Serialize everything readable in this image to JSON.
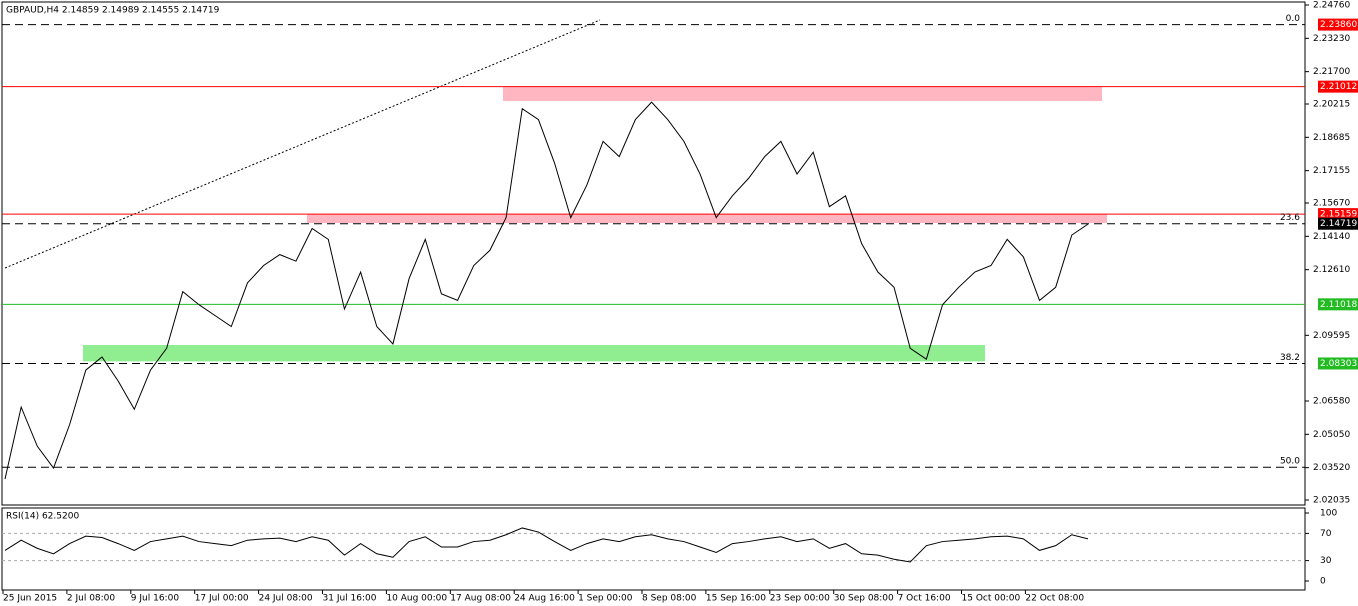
{
  "chart_data": {
    "type": "line",
    "title": "GBPAUD,H4  2.14859 2.14989 2.14555 2.14719",
    "x_labels": [
      "25 Jun 2015",
      "2 Jul 08:00",
      "9 Jul 16:00",
      "17 Jul 00:00",
      "24 Jul 08:00",
      "31 Jul 16:00",
      "10 Aug 00:00",
      "17 Aug 08:00",
      "24 Aug 16:00",
      "1 Sep 00:00",
      "8 Sep 08:00",
      "15 Sep 16:00",
      "23 Sep 00:00",
      "30 Sep 08:00",
      "7 Oct 16:00",
      "15 Oct 00:00",
      "22 Oct 08:00"
    ],
    "series": [
      {
        "name": "GBPAUD",
        "color": "#000000",
        "values": [
          2.03,
          2.063,
          2.045,
          2.035,
          2.055,
          2.08,
          2.086,
          2.075,
          2.062,
          2.08,
          2.09,
          2.116,
          2.11,
          2.105,
          2.1,
          2.12,
          2.128,
          2.133,
          2.13,
          2.145,
          2.14,
          2.108,
          2.125,
          2.1,
          2.092,
          2.122,
          2.14,
          2.115,
          2.112,
          2.128,
          2.135,
          2.15,
          2.2,
          2.195,
          2.175,
          2.15,
          2.165,
          2.185,
          2.178,
          2.195,
          2.203,
          2.195,
          2.185,
          2.17,
          2.15,
          2.16,
          2.168,
          2.178,
          2.185,
          2.17,
          2.18,
          2.155,
          2.16,
          2.138,
          2.125,
          2.118,
          2.09,
          2.085,
          2.11,
          2.118,
          2.125,
          2.128,
          2.14,
          2.132,
          2.112,
          2.118,
          2.142,
          2.147
        ]
      }
    ],
    "ylim": [
      2.02035,
      2.2476
    ],
    "yticks": [
      {
        "value": 2.2476,
        "label": "2.24760"
      },
      {
        "value": 2.2323,
        "label": "2.23230"
      },
      {
        "value": 2.217,
        "label": "2.21700"
      },
      2.20215,
      2.18685,
      2.17155,
      {
        "value": 2.1567,
        "label": "2.15670"
      },
      {
        "value": 2.1414,
        "label": "2.14140"
      },
      {
        "value": 2.1261,
        "label": "2.12610"
      },
      2.09595,
      {
        "value": 2.0658,
        "label": "2.06580"
      },
      {
        "value": 2.0505,
        "label": "2.05050"
      },
      {
        "value": 2.0352,
        "label": "2.03520"
      },
      2.02035
    ],
    "levels": [
      {
        "value": 2.2386,
        "label": "2.23860",
        "color": "#ff0000",
        "dashed": true,
        "fib": "0.0"
      },
      {
        "value": 2.21012,
        "label": "2.21012",
        "color": "#ff0000",
        "dashed": false
      },
      {
        "value": 2.15159,
        "label": "2.15159",
        "color": "#ff0000",
        "dashed": false
      },
      {
        "value": 2.14719,
        "label": "2.14719",
        "color": "#000000",
        "dashed": true,
        "fib": "23.6"
      },
      {
        "value": 2.11018,
        "label": "2.11018",
        "color": "#22bb22",
        "dashed": false
      },
      {
        "value": 2.08303,
        "label": "2.08303",
        "color": "#22bb22",
        "dashed": true,
        "fib": "38.2"
      },
      {
        "value": 2.0354,
        "color": "#000000",
        "dashed": true,
        "fib": "50.0"
      }
    ],
    "zones": [
      {
        "low": 2.2035,
        "high": 2.2101,
        "color": "#ffb6c1"
      },
      {
        "low": 2.1475,
        "high": 2.1516,
        "color": "#ffb6c1"
      },
      {
        "low": 2.084,
        "high": 2.0915,
        "color": "#90ee90"
      }
    ],
    "rsi": {
      "title": "RSI(14) 62.5200",
      "values": [
        45,
        60,
        48,
        40,
        55,
        66,
        64,
        55,
        45,
        58,
        62,
        66,
        58,
        55,
        52,
        60,
        62,
        63,
        58,
        65,
        60,
        38,
        55,
        40,
        35,
        58,
        65,
        50,
        50,
        58,
        60,
        68,
        78,
        72,
        58,
        45,
        55,
        62,
        58,
        65,
        68,
        62,
        58,
        50,
        42,
        55,
        58,
        62,
        65,
        58,
        62,
        48,
        55,
        40,
        38,
        32,
        28,
        52,
        58,
        60,
        62,
        65,
        66,
        62,
        45,
        52,
        68,
        62
      ],
      "ylim": [
        0,
        100
      ],
      "yticks": [
        100,
        70,
        30,
        0
      ]
    }
  }
}
